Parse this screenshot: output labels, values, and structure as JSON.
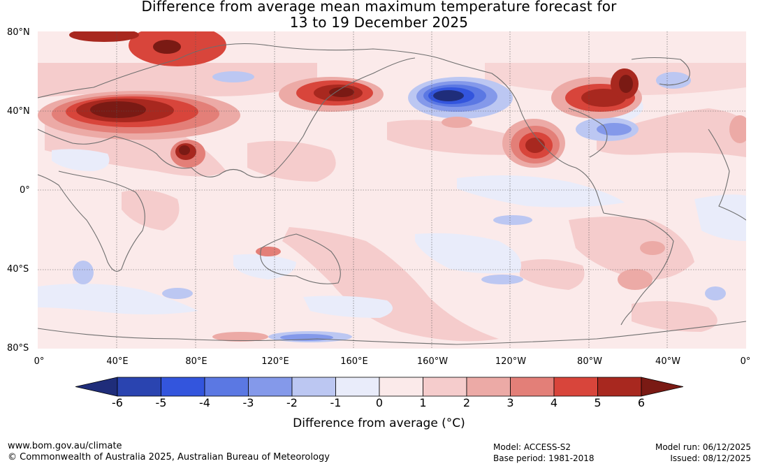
{
  "title": {
    "line1": "Difference from average mean maximum temperature forecast for",
    "line2": "13 to 19 December 2025"
  },
  "axes": {
    "lat_labels": [
      "80°N",
      "40°N",
      "0°",
      "40°S",
      "80°S"
    ],
    "lon_labels": [
      "0°",
      "40°E",
      "80°E",
      "120°E",
      "160°E",
      "160°W",
      "120°W",
      "80°W",
      "40°W",
      "0°"
    ]
  },
  "colorbar": {
    "title": "Difference from average (°C)",
    "tick_labels": [
      "-6",
      "-5",
      "-4",
      "-3",
      "-2",
      "-1",
      "0",
      "1",
      "2",
      "3",
      "4",
      "5",
      "6"
    ],
    "colors": [
      "#1f2d7a",
      "#2a44b0",
      "#3355dd",
      "#5b78e3",
      "#8499ea",
      "#bcc7f2",
      "#e9ecfa",
      "#fbeaea",
      "#f5cccc",
      "#ecaaa6",
      "#e37f78",
      "#d8453b",
      "#a8281f",
      "#7a1a14"
    ]
  },
  "footer": {
    "url": "www.bom.gov.au/climate",
    "copyright": "© Commonwealth of Australia 2025, Australian Bureau of Meteorology",
    "model": "Model: ACCESS-S2",
    "base_period": "Base period: 1981-2018",
    "model_run": "Model run: 06/12/2025",
    "issued": "Issued: 08/12/2025"
  }
}
